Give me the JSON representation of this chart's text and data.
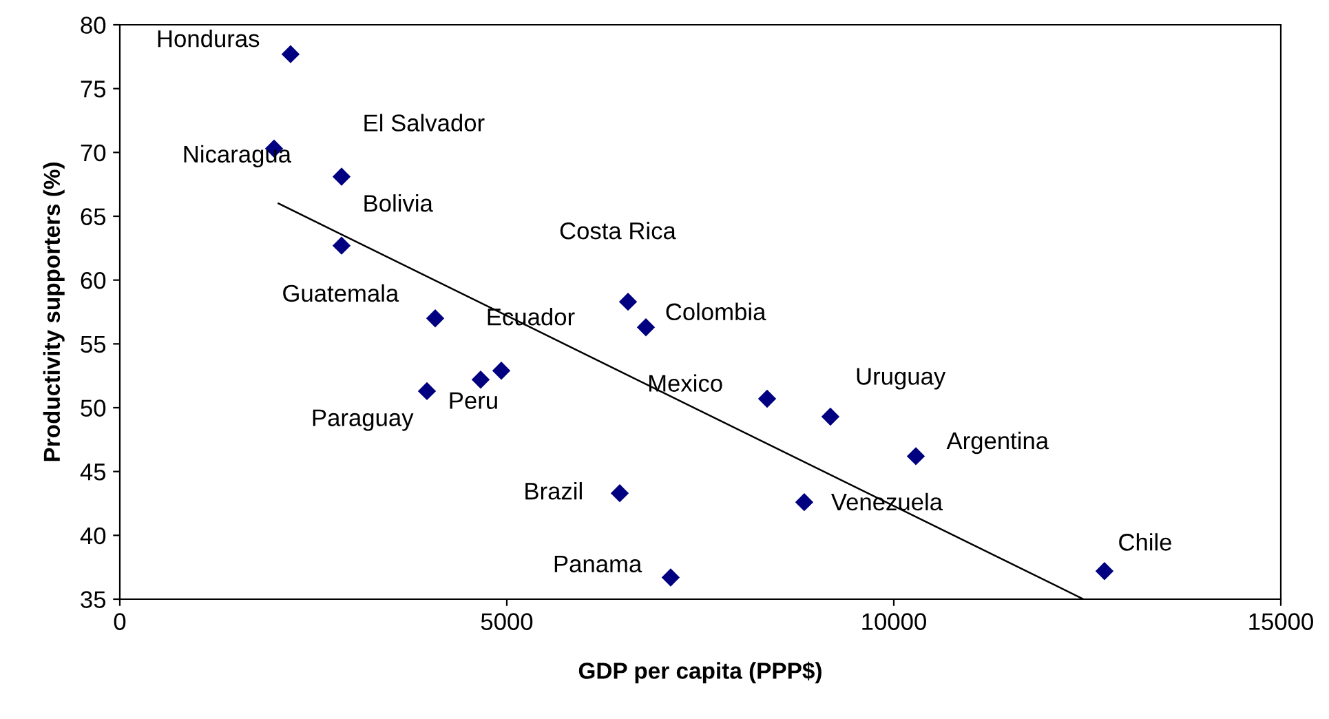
{
  "chart_data": {
    "type": "scatter",
    "xlabel": "GDP per capita (PPP$)",
    "ylabel": "Productivity supporters (%)",
    "xlim": [
      0,
      15000
    ],
    "xticks": [
      0,
      5000,
      10000,
      15000
    ],
    "ylim": [
      35,
      80
    ],
    "yticks": [
      35,
      40,
      45,
      50,
      55,
      60,
      65,
      70,
      75,
      80
    ],
    "grid": false,
    "legend": false,
    "series": [
      {
        "marker": "diamond",
        "color": "#000080",
        "x": [
          2206,
          1993,
          2865,
          2865,
          4075,
          6566,
          6797,
          4929,
          4662,
          3968,
          8363,
          9181,
          10285,
          6459,
          8843,
          7117,
          12722
        ],
        "values": [
          77.7,
          70.3,
          68.1,
          62.7,
          57.0,
          58.3,
          56.3,
          52.9,
          52.2,
          51.3,
          50.7,
          49.3,
          46.2,
          43.3,
          42.6,
          36.7,
          37.2
        ]
      },
      {
        "type": "line",
        "color": "#000000",
        "x": [
          2050,
          12450
        ],
        "values": [
          66.0,
          35.0
        ]
      }
    ],
    "annotations": [
      {
        "text": "Honduras",
        "x": 2206,
        "y": 77.7
      },
      {
        "text": "Nicaragua",
        "x": 1993,
        "y": 70.3
      },
      {
        "text": "El Salvador",
        "x": 2865,
        "y": 68.1
      },
      {
        "text": "Bolivia",
        "x": 2865,
        "y": 62.7
      },
      {
        "text": "Guatemala",
        "x": 4075,
        "y": 57.0
      },
      {
        "text": "Costa Rica",
        "x": 6566,
        "y": 58.3
      },
      {
        "text": "Colombia",
        "x": 6797,
        "y": 56.3
      },
      {
        "text": "Ecuador",
        "x": 4929,
        "y": 52.9
      },
      {
        "text": "Peru",
        "x": 4662,
        "y": 52.2
      },
      {
        "text": "Paraguay",
        "x": 3968,
        "y": 51.3
      },
      {
        "text": "Mexico",
        "x": 8363,
        "y": 50.7
      },
      {
        "text": "Uruguay",
        "x": 9181,
        "y": 49.3
      },
      {
        "text": "Argentina",
        "x": 10285,
        "y": 46.2
      },
      {
        "text": "Brazil",
        "x": 6459,
        "y": 43.3
      },
      {
        "text": "Venezuela",
        "x": 8843,
        "y": 42.6
      },
      {
        "text": "Panama",
        "x": 7117,
        "y": 36.7
      },
      {
        "text": "Chile",
        "x": 12722,
        "y": 37.2
      }
    ]
  }
}
